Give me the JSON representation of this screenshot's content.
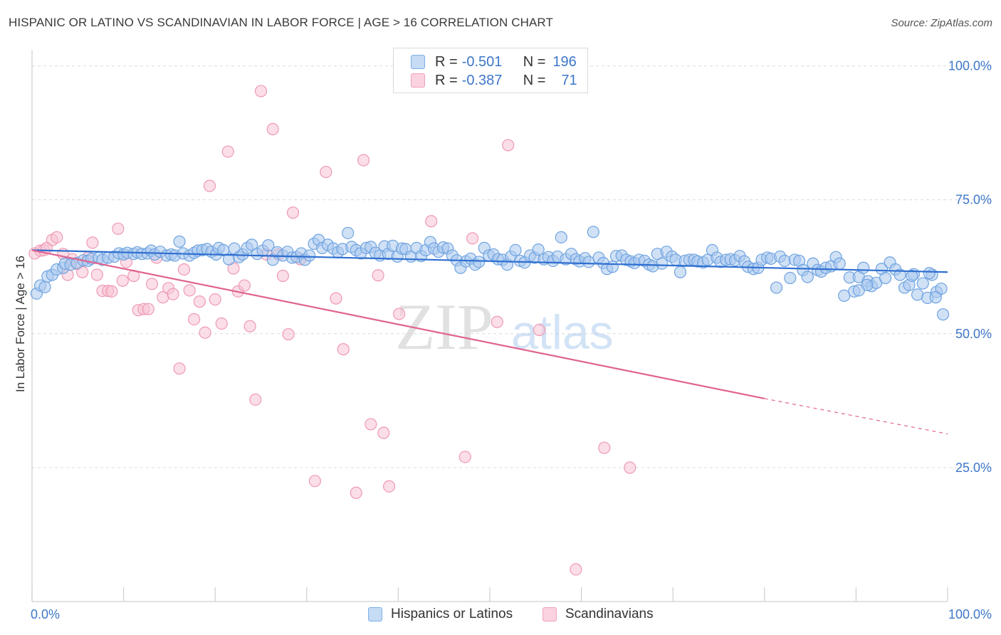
{
  "title": "HISPANIC OR LATINO VS SCANDINAVIAN IN LABOR FORCE | AGE > 16 CORRELATION CHART",
  "source": "Source: ZipAtlas.com",
  "watermark": {
    "zip": "ZIP",
    "atlas": "atlas"
  },
  "legend": {
    "rows": [
      {
        "r_label": "R =",
        "r_value": "-0.501",
        "n_label": "N =",
        "n_value": "196",
        "color": "#7aaee8"
      },
      {
        "r_label": "R =",
        "r_value": "-0.387",
        "n_label": "N =",
        "n_value": "71",
        "color": "#f2a0ba"
      }
    ]
  },
  "bottom_legend": {
    "items": [
      "Hispanics or Latinos",
      "Scandinavians"
    ]
  },
  "colors": {
    "blue_fill": "#a9c8ef",
    "blue_stroke": "#6fa3e0",
    "blue_line": "#2f6fd0",
    "pink_fill": "#f7c3d3",
    "pink_stroke": "#ee9ab4",
    "pink_line": "#e0638f",
    "tick_label": "#3d77c9",
    "grid": "#dcdcdc"
  },
  "chart_data": {
    "type": "scatter",
    "title": "HISPANIC OR LATINO VS SCANDINAVIAN IN LABOR FORCE | AGE > 16 CORRELATION CHART",
    "xlabel": "",
    "ylabel": "In Labor Force | Age > 16",
    "xlim": [
      0,
      100
    ],
    "ylim": [
      0,
      103
    ],
    "x_tick_labels": [
      "0.0%",
      "100.0%"
    ],
    "y_ticks": [
      25,
      50,
      75,
      100
    ],
    "y_tick_labels": [
      "25.0%",
      "50.0%",
      "75.0%",
      "100.0%"
    ],
    "grid": true,
    "series": [
      {
        "name": "Hispanics or Latinos",
        "color": "#6fa3e0",
        "points": [
          [
            0.5,
            57.5
          ],
          [
            0.9,
            59
          ],
          [
            1.4,
            58.7
          ],
          [
            1.7,
            60.7
          ],
          [
            2.2,
            61
          ],
          [
            2.7,
            62
          ],
          [
            3.4,
            62.3
          ],
          [
            3.6,
            63.1
          ],
          [
            4.2,
            62.9
          ],
          [
            4.9,
            63.2
          ],
          [
            5.6,
            63.7
          ],
          [
            6.1,
            63.6
          ],
          [
            6.5,
            64
          ],
          [
            7.3,
            64.2
          ],
          [
            7.7,
            63.8
          ],
          [
            8.3,
            64.2
          ],
          [
            9.0,
            64.4
          ],
          [
            9.5,
            65
          ],
          [
            10.0,
            64.8
          ],
          [
            10.4,
            65.1
          ],
          [
            11.1,
            64.9
          ],
          [
            11.5,
            65.2
          ],
          [
            12.0,
            64.9
          ],
          [
            12.6,
            65
          ],
          [
            13.0,
            65.5
          ],
          [
            13.4,
            64.8
          ],
          [
            14.0,
            65.3
          ],
          [
            14.7,
            64.6
          ],
          [
            15.2,
            64.8
          ],
          [
            15.6,
            64.6
          ],
          [
            16.1,
            67.2
          ],
          [
            16.5,
            65
          ],
          [
            17.2,
            64.6
          ],
          [
            17.7,
            65.1
          ],
          [
            18.1,
            65.5
          ],
          [
            18.6,
            65.6
          ],
          [
            19.1,
            65.8
          ],
          [
            19.6,
            65.3
          ],
          [
            20.1,
            64.8
          ],
          [
            20.4,
            66
          ],
          [
            20.9,
            65.6
          ],
          [
            21.5,
            63.9
          ],
          [
            22.1,
            65.9
          ],
          [
            22.6,
            64.3
          ],
          [
            23.0,
            64.8
          ],
          [
            23.5,
            66
          ],
          [
            24.0,
            66.6
          ],
          [
            24.6,
            64.9
          ],
          [
            25.2,
            65.5
          ],
          [
            25.8,
            66.5
          ],
          [
            26.3,
            63.8
          ],
          [
            26.8,
            65.2
          ],
          [
            27.4,
            64.6
          ],
          [
            27.9,
            65.3
          ],
          [
            28.4,
            64.2
          ],
          [
            28.9,
            64.3
          ],
          [
            29.4,
            65
          ],
          [
            29.8,
            63.8
          ],
          [
            30.3,
            64.6
          ],
          [
            30.8,
            66.8
          ],
          [
            31.3,
            67.5
          ],
          [
            31.7,
            66
          ],
          [
            32.3,
            66.6
          ],
          [
            32.9,
            65.9
          ],
          [
            33.4,
            65.2
          ],
          [
            33.9,
            65.8
          ],
          [
            34.5,
            68.8
          ],
          [
            34.9,
            66.2
          ],
          [
            35.4,
            65.6
          ],
          [
            35.9,
            65
          ],
          [
            36.5,
            66
          ],
          [
            37.0,
            66.2
          ],
          [
            37.5,
            65.1
          ],
          [
            38.0,
            64.6
          ],
          [
            38.5,
            66.3
          ],
          [
            38.9,
            64.9
          ],
          [
            39.4,
            66.4
          ],
          [
            39.9,
            64.4
          ],
          [
            40.4,
            65.9
          ],
          [
            40.8,
            65.8
          ],
          [
            41.4,
            64.4
          ],
          [
            42.0,
            66
          ],
          [
            42.5,
            64.5
          ],
          [
            43.0,
            65.6
          ],
          [
            43.5,
            67.1
          ],
          [
            43.9,
            65.9
          ],
          [
            44.4,
            65.3
          ],
          [
            44.9,
            66.1
          ],
          [
            45.4,
            65.9
          ],
          [
            45.9,
            64.6
          ],
          [
            46.4,
            63.7
          ],
          [
            46.8,
            62.3
          ],
          [
            47.4,
            63.5
          ],
          [
            47.9,
            64
          ],
          [
            48.4,
            62.9
          ],
          [
            48.8,
            63.4
          ],
          [
            49.4,
            66
          ],
          [
            49.9,
            64.6
          ],
          [
            50.4,
            64.8
          ],
          [
            50.9,
            63.9
          ],
          [
            51.4,
            63.8
          ],
          [
            51.9,
            62.9
          ],
          [
            52.3,
            64.4
          ],
          [
            52.8,
            65.6
          ],
          [
            53.3,
            63.6
          ],
          [
            53.8,
            63.3
          ],
          [
            54.4,
            64.6
          ],
          [
            54.9,
            64.2
          ],
          [
            55.3,
            65.7
          ],
          [
            55.9,
            63.9
          ],
          [
            56.4,
            64.3
          ],
          [
            56.9,
            63.6
          ],
          [
            57.4,
            64.4
          ],
          [
            57.8,
            68
          ],
          [
            58.3,
            63.9
          ],
          [
            58.9,
            64.9
          ],
          [
            59.4,
            63.9
          ],
          [
            59.8,
            63.5
          ],
          [
            60.4,
            64.1
          ],
          [
            60.8,
            63.4
          ],
          [
            61.3,
            69
          ],
          [
            61.9,
            64.2
          ],
          [
            62.4,
            63.2
          ],
          [
            62.8,
            62.1
          ],
          [
            63.4,
            62.5
          ],
          [
            63.8,
            64.5
          ],
          [
            64.4,
            64.6
          ],
          [
            64.9,
            63.8
          ],
          [
            65.4,
            63.5
          ],
          [
            65.8,
            63.2
          ],
          [
            66.3,
            63.8
          ],
          [
            66.9,
            63.6
          ],
          [
            67.4,
            62.9
          ],
          [
            67.8,
            62.6
          ],
          [
            68.3,
            64.9
          ],
          [
            68.8,
            63.1
          ],
          [
            69.3,
            65.3
          ],
          [
            69.9,
            64.4
          ],
          [
            70.3,
            63.8
          ],
          [
            70.8,
            61.5
          ],
          [
            71.3,
            63.6
          ],
          [
            71.8,
            63.8
          ],
          [
            72.3,
            63.8
          ],
          [
            72.7,
            63.5
          ],
          [
            73.3,
            63.3
          ],
          [
            73.8,
            63.8
          ],
          [
            74.3,
            65.6
          ],
          [
            74.8,
            64.2
          ],
          [
            75.2,
            63.4
          ],
          [
            75.8,
            63.8
          ],
          [
            76.3,
            63.9
          ],
          [
            76.8,
            63.7
          ],
          [
            77.3,
            64.5
          ],
          [
            77.8,
            63.5
          ],
          [
            78.2,
            62.5
          ],
          [
            78.8,
            62.1
          ],
          [
            79.3,
            62.3
          ],
          [
            79.7,
            63.8
          ],
          [
            80.3,
            64.2
          ],
          [
            80.7,
            64
          ],
          [
            81.3,
            58.6
          ],
          [
            81.7,
            64.4
          ],
          [
            82.2,
            63.6
          ],
          [
            82.8,
            60.4
          ],
          [
            83.3,
            63.8
          ],
          [
            83.8,
            63.6
          ],
          [
            84.2,
            61.9
          ],
          [
            84.7,
            60.6
          ],
          [
            85.3,
            63.1
          ],
          [
            85.8,
            61.9
          ],
          [
            86.2,
            61.6
          ],
          [
            86.7,
            62.3
          ],
          [
            87.3,
            62.6
          ],
          [
            87.8,
            64.3
          ],
          [
            88.2,
            63.1
          ],
          [
            88.7,
            57.1
          ],
          [
            89.3,
            60.5
          ],
          [
            89.8,
            57.9
          ],
          [
            90.3,
            60.6
          ],
          [
            90.8,
            62.3
          ],
          [
            91.3,
            59.8
          ],
          [
            91.7,
            58.9
          ],
          [
            92.2,
            59.5
          ],
          [
            92.8,
            62.1
          ],
          [
            93.2,
            60.4
          ],
          [
            93.7,
            63.3
          ],
          [
            94.3,
            62
          ],
          [
            94.8,
            61
          ],
          [
            95.3,
            58.6
          ],
          [
            95.8,
            59.1
          ],
          [
            96.3,
            61.1
          ],
          [
            96.7,
            57.3
          ],
          [
            97.3,
            59.4
          ],
          [
            97.8,
            56.7
          ],
          [
            98.3,
            61
          ],
          [
            98.8,
            57.8
          ],
          [
            99.3,
            58.4
          ],
          [
            98.0,
            61.3
          ],
          [
            98.7,
            56.8
          ],
          [
            99.5,
            53.6
          ],
          [
            96.1,
            60.8
          ],
          [
            91.2,
            59.1
          ],
          [
            90.3,
            58.1
          ]
        ]
      },
      {
        "name": "Scandinavians",
        "color": "#ee9ab4",
        "points": [
          [
            0.3,
            65
          ],
          [
            0.9,
            65.5
          ],
          [
            1.3,
            65.6
          ],
          [
            1.6,
            66
          ],
          [
            2.2,
            67.5
          ],
          [
            2.7,
            68
          ],
          [
            3.4,
            64.9
          ],
          [
            3.9,
            61
          ],
          [
            4.4,
            63.9
          ],
          [
            4.9,
            63
          ],
          [
            5.5,
            61.5
          ],
          [
            6.1,
            64.2
          ],
          [
            6.6,
            67
          ],
          [
            7.1,
            61
          ],
          [
            7.7,
            58
          ],
          [
            8.3,
            58
          ],
          [
            8.7,
            57.9
          ],
          [
            9.4,
            69.6
          ],
          [
            9.9,
            59.9
          ],
          [
            10.3,
            63.4
          ],
          [
            11.1,
            60.8
          ],
          [
            11.6,
            54.4
          ],
          [
            12.2,
            54.6
          ],
          [
            12.7,
            54.6
          ],
          [
            13.1,
            59.3
          ],
          [
            13.6,
            64.2
          ],
          [
            14.3,
            56.8
          ],
          [
            14.9,
            58.5
          ],
          [
            15.4,
            57.4
          ],
          [
            16.1,
            43.5
          ],
          [
            16.6,
            62
          ],
          [
            17.2,
            58.1
          ],
          [
            17.7,
            52.7
          ],
          [
            18.3,
            56
          ],
          [
            18.9,
            50.2
          ],
          [
            19.4,
            77.6
          ],
          [
            20.0,
            56.4
          ],
          [
            20.7,
            51.9
          ],
          [
            21.4,
            84
          ],
          [
            22.0,
            62.2
          ],
          [
            22.5,
            57.9
          ],
          [
            23.2,
            59
          ],
          [
            23.8,
            51.4
          ],
          [
            24.4,
            37.7
          ],
          [
            25.0,
            95.3
          ],
          [
            25.6,
            64.8
          ],
          [
            26.3,
            88.2
          ],
          [
            26.9,
            64.8
          ],
          [
            27.4,
            60.8
          ],
          [
            28.0,
            49.9
          ],
          [
            28.5,
            72.6
          ],
          [
            29.3,
            63.9
          ],
          [
            30.9,
            22.5
          ],
          [
            32.1,
            80.2
          ],
          [
            33.2,
            56.6
          ],
          [
            34.0,
            47.1
          ],
          [
            35.4,
            20.3
          ],
          [
            36.2,
            82.4
          ],
          [
            37.0,
            33.1
          ],
          [
            37.8,
            60.9
          ],
          [
            38.4,
            31.5
          ],
          [
            39.0,
            21.5
          ],
          [
            40.1,
            53.7
          ],
          [
            43.6,
            71
          ],
          [
            47.3,
            27
          ],
          [
            48.1,
            67.8
          ],
          [
            50.8,
            52.2
          ],
          [
            52.0,
            85.2
          ],
          [
            55.4,
            50.7
          ],
          [
            59.4,
            6
          ],
          [
            62.5,
            28.7
          ],
          [
            65.3,
            25
          ]
        ]
      }
    ],
    "trend_lines": [
      {
        "series": "Hispanics or Latinos",
        "x": [
          0,
          100
        ],
        "y": [
          65.6,
          61.5
        ]
      },
      {
        "series": "Scandinavians",
        "x": [
          0,
          80
        ],
        "y": [
          65.6,
          37.9
        ],
        "dashed_extension": {
          "x": [
            80,
            100
          ],
          "y": [
            37.9,
            31.3
          ]
        }
      }
    ]
  }
}
